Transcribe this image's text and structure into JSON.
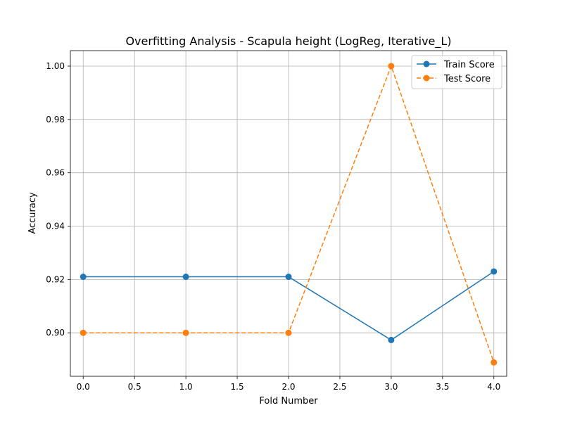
{
  "chart_data": {
    "type": "line",
    "title": "Overfitting Analysis - Scapula height (LogReg, Iterative_L)",
    "xlabel": "Fold Number",
    "ylabel": "Accuracy",
    "xlim": [
      -0.125,
      4.125
    ],
    "ylim": [
      0.8837,
      1.0058
    ],
    "x_ticks": [
      0.0,
      0.5,
      1.0,
      1.5,
      2.0,
      2.5,
      3.0,
      3.5,
      4.0
    ],
    "x_tick_labels": [
      "0.0",
      "0.5",
      "1.0",
      "1.5",
      "2.0",
      "2.5",
      "3.0",
      "3.5",
      "4.0"
    ],
    "y_ticks": [
      0.9,
      0.92,
      0.94,
      0.96,
      0.98,
      1.0
    ],
    "y_tick_labels": [
      "0.90",
      "0.92",
      "0.94",
      "0.96",
      "0.98",
      "1.00"
    ],
    "grid": true,
    "legend_position": "upper-right",
    "x": [
      0,
      1,
      2,
      3,
      4
    ],
    "series": [
      {
        "name": "Train Score",
        "values": [
          0.921,
          0.921,
          0.921,
          0.8973,
          0.923
        ],
        "color": "#1f77b4",
        "line_style": "solid",
        "marker": "circle"
      },
      {
        "name": "Test Score",
        "values": [
          0.9,
          0.9,
          0.9,
          1.0,
          0.8889
        ],
        "color": "#ff7f0e",
        "line_style": "dashed",
        "marker": "circle"
      }
    ]
  }
}
